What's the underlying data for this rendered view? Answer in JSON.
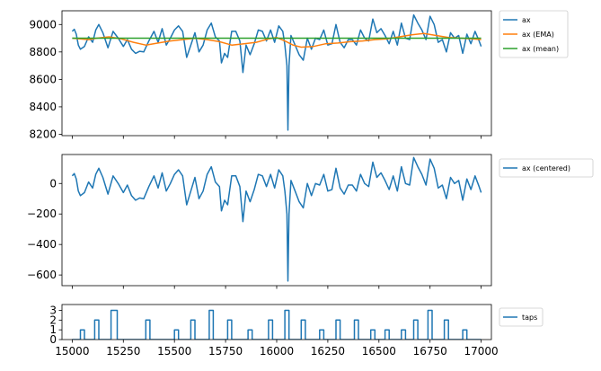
{
  "colors": {
    "blue": "#1f77b4",
    "orange": "#ff7f0e",
    "green": "#2ca02c"
  },
  "chart_data": [
    {
      "type": "line",
      "xlim": [
        14950,
        17050
      ],
      "ylim": [
        8190,
        9100
      ],
      "x_ticks": [
        15000,
        15250,
        15500,
        15750,
        16000,
        16250,
        16500,
        16750,
        17000
      ],
      "x_tick_labels_visible": false,
      "y_ticks": [
        8200,
        8400,
        8600,
        8800,
        9000
      ],
      "legend_position": "outside-right-top",
      "grid": false,
      "series": [
        {
          "name": "ax",
          "color": "#1f77b4",
          "x": [
            15000,
            15010,
            15020,
            15030,
            15040,
            15060,
            15080,
            15100,
            15115,
            15130,
            15150,
            15175,
            15200,
            15225,
            15250,
            15270,
            15290,
            15310,
            15330,
            15350,
            15375,
            15400,
            15420,
            15440,
            15460,
            15480,
            15500,
            15520,
            15540,
            15560,
            15580,
            15600,
            15620,
            15640,
            15660,
            15680,
            15700,
            15720,
            15730,
            15745,
            15760,
            15780,
            15800,
            15820,
            15835,
            15850,
            15870,
            15890,
            15910,
            15930,
            15950,
            15970,
            15990,
            16010,
            16030,
            16040,
            16050,
            16055,
            16060,
            16070,
            16090,
            16110,
            16130,
            16150,
            16170,
            16190,
            16210,
            16230,
            16250,
            16270,
            16290,
            16310,
            16330,
            16350,
            16370,
            16390,
            16410,
            16430,
            16450,
            16470,
            16490,
            16510,
            16530,
            16550,
            16570,
            16590,
            16610,
            16630,
            16650,
            16670,
            16690,
            16710,
            16730,
            16750,
            16770,
            16790,
            16810,
            16830,
            16850,
            16870,
            16890,
            16910,
            16930,
            16950,
            16970,
            16990,
            17000
          ],
          "y": [
            8950,
            8965,
            8930,
            8850,
            8820,
            8840,
            8910,
            8870,
            8960,
            9000,
            8940,
            8830,
            8950,
            8900,
            8840,
            8890,
            8820,
            8790,
            8805,
            8800,
            8880,
            8950,
            8870,
            8970,
            8850,
            8900,
            8960,
            8990,
            8950,
            8760,
            8850,
            8940,
            8800,
            8850,
            8960,
            9010,
            8910,
            8880,
            8720,
            8790,
            8760,
            8950,
            8950,
            8880,
            8650,
            8850,
            8780,
            8860,
            8960,
            8950,
            8880,
            8960,
            8870,
            8990,
            8950,
            8850,
            8700,
            8230,
            8700,
            8920,
            8850,
            8780,
            8740,
            8900,
            8820,
            8900,
            8890,
            8960,
            8850,
            8860,
            9000,
            8870,
            8830,
            8890,
            8890,
            8850,
            8960,
            8900,
            8880,
            9040,
            8940,
            8970,
            8920,
            8860,
            8950,
            8850,
            9010,
            8900,
            8890,
            9070,
            9010,
            8960,
            8890,
            9060,
            9000,
            8870,
            8890,
            8800,
            8940,
            8900,
            8920,
            8790,
            8930,
            8860,
            8950,
            8880,
            8840
          ]
        },
        {
          "name": "ax (EMA)",
          "color": "#ff7f0e",
          "x": [
            15000,
            15080,
            15120,
            15180,
            15240,
            15300,
            15360,
            15420,
            15480,
            15540,
            15600,
            15660,
            15720,
            15780,
            15840,
            15900,
            15960,
            16000,
            16040,
            16080,
            16120,
            16180,
            16240,
            16300,
            16360,
            16420,
            16480,
            16540,
            16600,
            16660,
            16720,
            16780,
            16840,
            16900,
            16960,
            17000
          ],
          "y": [
            8900,
            8890,
            8900,
            8910,
            8895,
            8870,
            8850,
            8865,
            8880,
            8890,
            8900,
            8890,
            8875,
            8850,
            8860,
            8870,
            8895,
            8905,
            8880,
            8850,
            8835,
            8840,
            8860,
            8865,
            8875,
            8880,
            8890,
            8895,
            8910,
            8925,
            8935,
            8920,
            8905,
            8900,
            8895,
            8890
          ]
        },
        {
          "name": "ax (mean)",
          "color": "#2ca02c",
          "x": [
            15000,
            17000
          ],
          "y": [
            8900,
            8900
          ]
        }
      ]
    },
    {
      "type": "line",
      "xlim": [
        14950,
        17050
      ],
      "ylim": [
        -670,
        190
      ],
      "x_ticks": [
        15000,
        15250,
        15500,
        15750,
        16000,
        16250,
        16500,
        16750,
        17000
      ],
      "x_tick_labels_visible": false,
      "y_ticks": [
        -600,
        -400,
        -200,
        0
      ],
      "legend_position": "outside-right-top",
      "grid": false,
      "series": [
        {
          "name": "ax (centered)",
          "color": "#1f77b4",
          "x": [
            15000,
            15010,
            15020,
            15030,
            15040,
            15060,
            15080,
            15100,
            15115,
            15130,
            15150,
            15175,
            15200,
            15225,
            15250,
            15270,
            15290,
            15310,
            15330,
            15350,
            15375,
            15400,
            15420,
            15440,
            15460,
            15480,
            15500,
            15520,
            15540,
            15560,
            15580,
            15600,
            15620,
            15640,
            15660,
            15680,
            15700,
            15720,
            15730,
            15745,
            15760,
            15780,
            15800,
            15820,
            15835,
            15850,
            15870,
            15890,
            15910,
            15930,
            15950,
            15970,
            15990,
            16010,
            16030,
            16040,
            16050,
            16055,
            16060,
            16070,
            16090,
            16110,
            16130,
            16150,
            16170,
            16190,
            16210,
            16230,
            16250,
            16270,
            16290,
            16310,
            16330,
            16350,
            16370,
            16390,
            16410,
            16430,
            16450,
            16470,
            16490,
            16510,
            16530,
            16550,
            16570,
            16590,
            16610,
            16630,
            16650,
            16670,
            16690,
            16710,
            16730,
            16750,
            16770,
            16790,
            16810,
            16830,
            16850,
            16870,
            16890,
            16910,
            16930,
            16950,
            16970,
            16990,
            17000
          ],
          "y": [
            50,
            65,
            30,
            -50,
            -80,
            -60,
            10,
            -30,
            60,
            100,
            40,
            -70,
            50,
            0,
            -60,
            -10,
            -80,
            -110,
            -95,
            -100,
            -20,
            50,
            -30,
            70,
            -50,
            0,
            60,
            90,
            50,
            -140,
            -50,
            40,
            -100,
            -50,
            60,
            110,
            10,
            -20,
            -180,
            -110,
            -140,
            50,
            50,
            -20,
            -250,
            -50,
            -120,
            -40,
            60,
            50,
            -20,
            60,
            -30,
            90,
            50,
            -50,
            -200,
            -640,
            -200,
            20,
            -50,
            -120,
            -160,
            0,
            -80,
            0,
            -10,
            60,
            -50,
            -40,
            100,
            -30,
            -70,
            -10,
            -10,
            -50,
            60,
            0,
            -20,
            140,
            40,
            70,
            20,
            -40,
            50,
            -50,
            110,
            0,
            -10,
            170,
            110,
            60,
            -10,
            160,
            100,
            -30,
            -10,
            -100,
            40,
            0,
            20,
            -110,
            30,
            -40,
            50,
            -20,
            -60
          ]
        }
      ]
    },
    {
      "type": "line",
      "xlim": [
        14950,
        17050
      ],
      "ylim": [
        0,
        3.6
      ],
      "x_ticks": [
        15000,
        15250,
        15500,
        15750,
        16000,
        16250,
        16500,
        16750,
        17000
      ],
      "x_tick_labels": [
        "15000",
        "15250",
        "15500",
        "15750",
        "16000",
        "16250",
        "16500",
        "16750",
        "17000"
      ],
      "y_ticks": [
        0,
        1,
        2,
        3
      ],
      "legend_position": "outside-right-top",
      "grid": false,
      "series": [
        {
          "name": "taps",
          "color": "#1f77b4",
          "x": [
            15000,
            15040,
            15040,
            15060,
            15060,
            15110,
            15110,
            15130,
            15130,
            15190,
            15190,
            15220,
            15220,
            15360,
            15360,
            15380,
            15380,
            15500,
            15500,
            15520,
            15520,
            15580,
            15580,
            15600,
            15600,
            15670,
            15670,
            15690,
            15690,
            15760,
            15760,
            15780,
            15780,
            15860,
            15860,
            15880,
            15880,
            15960,
            15960,
            15980,
            15980,
            16040,
            16040,
            16060,
            16060,
            16120,
            16120,
            16140,
            16140,
            16210,
            16210,
            16230,
            16230,
            16290,
            16290,
            16310,
            16310,
            16380,
            16380,
            16400,
            16400,
            16460,
            16460,
            16480,
            16480,
            16530,
            16530,
            16550,
            16550,
            16610,
            16610,
            16630,
            16630,
            16670,
            16670,
            16690,
            16690,
            16740,
            16740,
            16760,
            16760,
            16820,
            16820,
            16840,
            16840,
            16910,
            16910,
            16930,
            16930,
            17000
          ],
          "y": [
            0,
            0,
            1,
            1,
            0,
            0,
            2,
            2,
            0,
            0,
            3,
            3,
            0,
            0,
            2,
            2,
            0,
            0,
            1,
            1,
            0,
            0,
            2,
            2,
            0,
            0,
            3,
            3,
            0,
            0,
            2,
            2,
            0,
            0,
            1,
            1,
            0,
            0,
            2,
            2,
            0,
            0,
            3,
            3,
            0,
            0,
            2,
            2,
            0,
            0,
            1,
            1,
            0,
            0,
            2,
            2,
            0,
            0,
            2,
            2,
            0,
            0,
            1,
            1,
            0,
            0,
            1,
            1,
            0,
            0,
            1,
            1,
            0,
            0,
            2,
            2,
            0,
            0,
            3,
            3,
            0,
            0,
            2,
            2,
            0,
            0,
            1,
            1,
            0,
            0
          ]
        }
      ]
    }
  ]
}
